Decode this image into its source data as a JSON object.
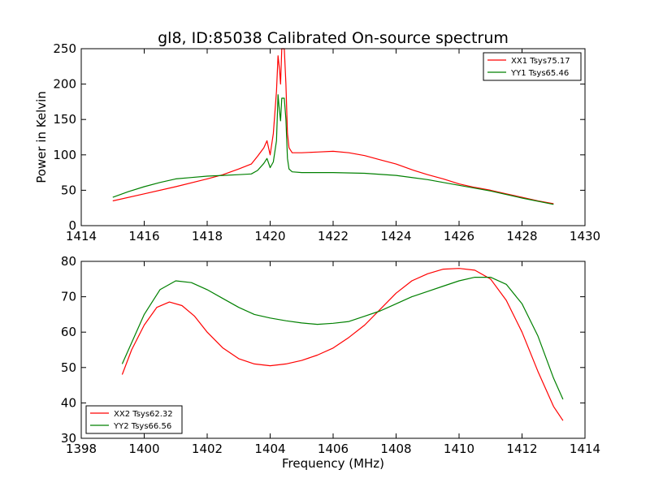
{
  "chart_data": [
    {
      "type": "line",
      "title": "gl8, ID:85038 Calibrated On-source spectrum",
      "xlabel": "",
      "ylabel": "Power in Kelvin",
      "xlim": [
        1414,
        1430
      ],
      "ylim": [
        0,
        250
      ],
      "x_ticks": [
        1414,
        1416,
        1418,
        1420,
        1422,
        1424,
        1426,
        1428,
        1430
      ],
      "y_ticks": [
        0,
        50,
        100,
        150,
        200,
        250
      ],
      "grid": false,
      "legend_position": "top-right",
      "series": [
        {
          "name": "XX1 Tsys75.17",
          "color": "#ff0000",
          "points": [
            [
              1415.0,
              35
            ],
            [
              1416.0,
              45
            ],
            [
              1417.0,
              55
            ],
            [
              1418.0,
              66
            ],
            [
              1418.5,
              72
            ],
            [
              1419.0,
              80
            ],
            [
              1419.4,
              87
            ],
            [
              1419.6,
              98
            ],
            [
              1419.8,
              110
            ],
            [
              1419.9,
              120
            ],
            [
              1420.0,
              100
            ],
            [
              1420.1,
              130
            ],
            [
              1420.2,
              190
            ],
            [
              1420.25,
              240
            ],
            [
              1420.3,
              220
            ],
            [
              1420.33,
              200
            ],
            [
              1420.37,
              250
            ],
            [
              1420.45,
              250
            ],
            [
              1420.5,
              200
            ],
            [
              1420.55,
              130
            ],
            [
              1420.6,
              110
            ],
            [
              1420.7,
              103
            ],
            [
              1421.0,
              103
            ],
            [
              1421.5,
              104
            ],
            [
              1422.0,
              105
            ],
            [
              1422.5,
              103
            ],
            [
              1423.0,
              99
            ],
            [
              1423.5,
              93
            ],
            [
              1424.0,
              87
            ],
            [
              1424.5,
              79
            ],
            [
              1425.0,
              72
            ],
            [
              1425.5,
              66
            ],
            [
              1426.0,
              59
            ],
            [
              1426.5,
              54
            ],
            [
              1427.0,
              50
            ],
            [
              1427.5,
              45
            ],
            [
              1428.0,
              40
            ],
            [
              1428.5,
              35
            ],
            [
              1429.0,
              31
            ]
          ]
        },
        {
          "name": "YY1 Tsys65.46",
          "color": "#008000",
          "points": [
            [
              1415.0,
              40
            ],
            [
              1415.5,
              48
            ],
            [
              1416.0,
              55
            ],
            [
              1416.5,
              61
            ],
            [
              1417.0,
              66
            ],
            [
              1417.5,
              68
            ],
            [
              1418.0,
              70
            ],
            [
              1418.5,
              71
            ],
            [
              1419.0,
              72
            ],
            [
              1419.4,
              73
            ],
            [
              1419.6,
              78
            ],
            [
              1419.8,
              88
            ],
            [
              1419.9,
              95
            ],
            [
              1420.0,
              82
            ],
            [
              1420.1,
              90
            ],
            [
              1420.2,
              120
            ],
            [
              1420.25,
              185
            ],
            [
              1420.28,
              170
            ],
            [
              1420.33,
              148
            ],
            [
              1420.37,
              180
            ],
            [
              1420.45,
              180
            ],
            [
              1420.5,
              150
            ],
            [
              1420.55,
              95
            ],
            [
              1420.6,
              80
            ],
            [
              1420.7,
              76
            ],
            [
              1421.0,
              75
            ],
            [
              1422.0,
              75
            ],
            [
              1423.0,
              74
            ],
            [
              1424.0,
              71
            ],
            [
              1425.0,
              65
            ],
            [
              1426.0,
              57
            ],
            [
              1427.0,
              49
            ],
            [
              1428.0,
              39
            ],
            [
              1429.0,
              30
            ]
          ]
        }
      ]
    },
    {
      "type": "line",
      "title": "",
      "xlabel": "Frequency (MHz)",
      "ylabel": "",
      "xlim": [
        1398,
        1414
      ],
      "ylim": [
        30,
        80
      ],
      "x_ticks": [
        1398,
        1400,
        1402,
        1404,
        1406,
        1408,
        1410,
        1412,
        1414
      ],
      "y_ticks": [
        30,
        40,
        50,
        60,
        70,
        80
      ],
      "grid": false,
      "legend_position": "bottom-left",
      "series": [
        {
          "name": "XX2 Tsys62.32",
          "color": "#ff0000",
          "points": [
            [
              1399.3,
              48
            ],
            [
              1399.6,
              55
            ],
            [
              1400.0,
              62
            ],
            [
              1400.4,
              67
            ],
            [
              1400.8,
              68.5
            ],
            [
              1401.2,
              67.5
            ],
            [
              1401.6,
              64.5
            ],
            [
              1402.0,
              60
            ],
            [
              1402.5,
              55.5
            ],
            [
              1403.0,
              52.5
            ],
            [
              1403.5,
              51
            ],
            [
              1404.0,
              50.5
            ],
            [
              1404.5,
              51
            ],
            [
              1405.0,
              52
            ],
            [
              1405.5,
              53.5
            ],
            [
              1406.0,
              55.5
            ],
            [
              1406.5,
              58.5
            ],
            [
              1407.0,
              62
            ],
            [
              1407.5,
              66.5
            ],
            [
              1408.0,
              71
            ],
            [
              1408.5,
              74.5
            ],
            [
              1409.0,
              76.5
            ],
            [
              1409.5,
              77.8
            ],
            [
              1410.0,
              78
            ],
            [
              1410.5,
              77.5
            ],
            [
              1411.0,
              75
            ],
            [
              1411.5,
              69
            ],
            [
              1412.0,
              60
            ],
            [
              1412.5,
              49
            ],
            [
              1413.0,
              39
            ],
            [
              1413.3,
              35
            ]
          ]
        },
        {
          "name": "YY2 Tsys66.56",
          "color": "#008000",
          "points": [
            [
              1399.3,
              51
            ],
            [
              1399.6,
              57
            ],
            [
              1400.0,
              65
            ],
            [
              1400.5,
              72
            ],
            [
              1401.0,
              74.5
            ],
            [
              1401.5,
              74
            ],
            [
              1402.0,
              72
            ],
            [
              1402.5,
              69.5
            ],
            [
              1403.0,
              67
            ],
            [
              1403.5,
              65
            ],
            [
              1404.0,
              64
            ],
            [
              1404.5,
              63.2
            ],
            [
              1405.0,
              62.6
            ],
            [
              1405.5,
              62.2
            ],
            [
              1406.0,
              62.5
            ],
            [
              1406.5,
              63
            ],
            [
              1407.0,
              64.5
            ],
            [
              1407.5,
              66
            ],
            [
              1408.0,
              68
            ],
            [
              1408.5,
              70
            ],
            [
              1409.0,
              71.5
            ],
            [
              1409.5,
              73
            ],
            [
              1410.0,
              74.5
            ],
            [
              1410.5,
              75.5
            ],
            [
              1411.0,
              75.5
            ],
            [
              1411.5,
              73.5
            ],
            [
              1412.0,
              68
            ],
            [
              1412.5,
              59
            ],
            [
              1413.0,
              47
            ],
            [
              1413.3,
              41
            ]
          ]
        }
      ]
    }
  ]
}
